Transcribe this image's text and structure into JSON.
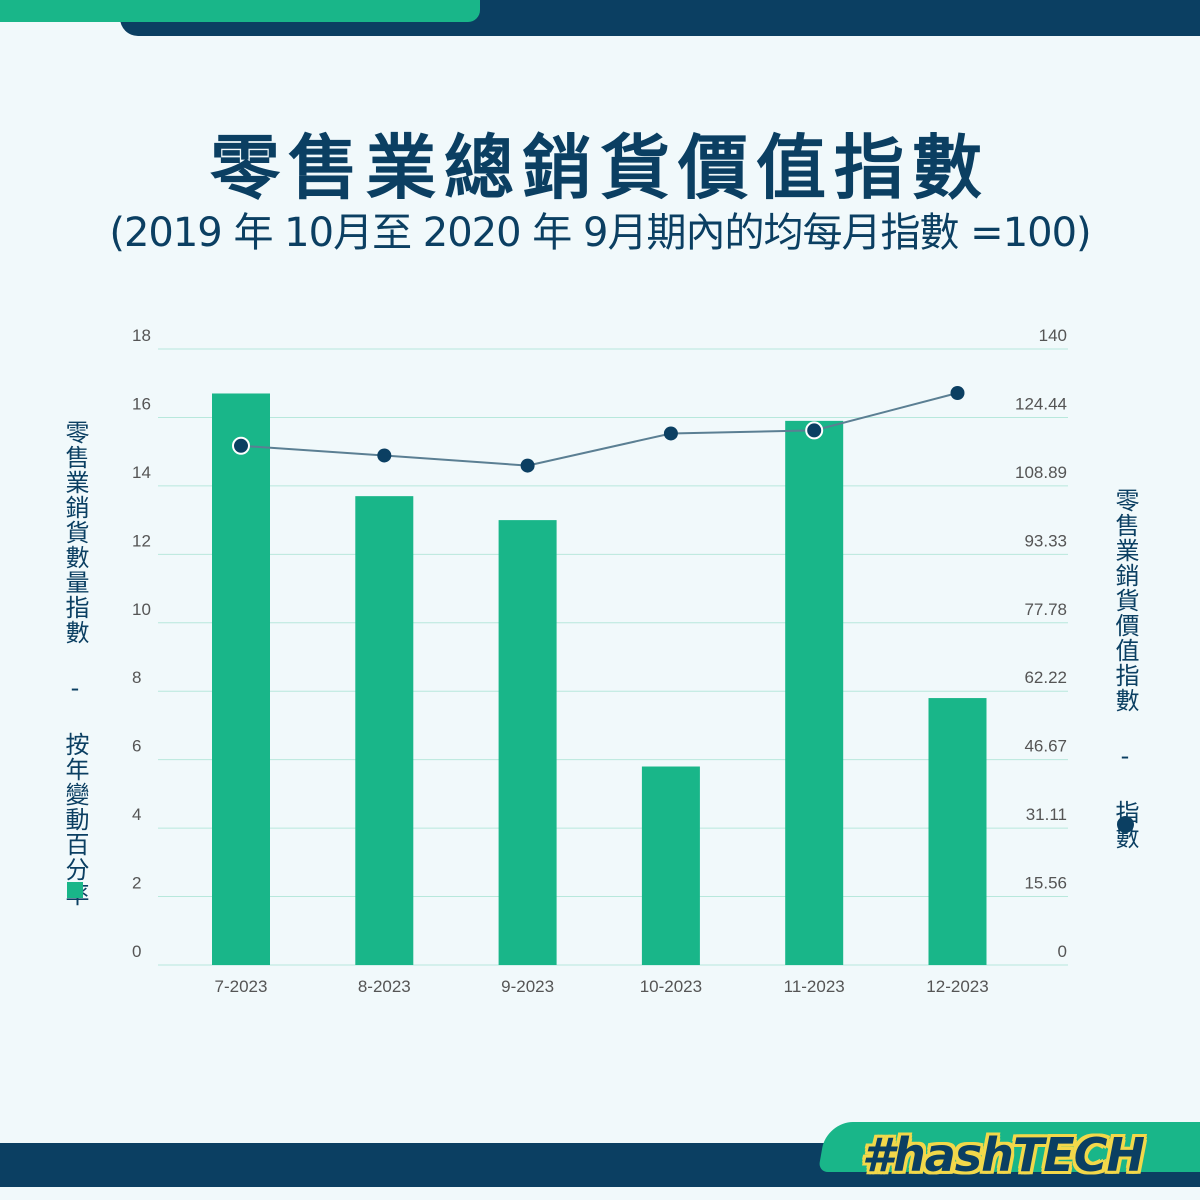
{
  "title": "零售業總銷貨價值指數",
  "subtitle": "(2019 年 10月至 2020 年 9月期內的均每月指數 =100)",
  "logo_text": "#hashTECH",
  "colors": {
    "bar": "#19b689",
    "line": "#5b7f93",
    "marker": "#0b3f62",
    "brand_navy": "#0b3f62",
    "brand_green": "#19b689"
  },
  "chart_data": {
    "type": "bar",
    "categories": [
      "7-2023",
      "8-2023",
      "9-2023",
      "10-2023",
      "11-2023",
      "12-2023"
    ],
    "series": [
      {
        "name": "零售業銷貨數量指數 - 按年變動百分率",
        "type": "bar",
        "axis": "left",
        "values": [
          16.7,
          13.7,
          13.0,
          5.8,
          15.9,
          7.8
        ]
      },
      {
        "name": "零售業銷貨價值指數 - 指數",
        "type": "line",
        "axis": "right",
        "values": [
          118.0,
          115.8,
          113.5,
          120.8,
          121.5,
          130.0
        ]
      }
    ],
    "y_left": {
      "label": "零售業銷貨數量指數 - 按年變動百分率",
      "ylim": [
        0,
        18
      ],
      "ticks": [
        "0",
        "2",
        "4",
        "6",
        "8",
        "10",
        "12",
        "14",
        "16",
        "18"
      ]
    },
    "y_right": {
      "label": "零售業銷貨價值指數 - 指數",
      "ylim": [
        0,
        140
      ],
      "ticks": [
        "0",
        "15.56",
        "31.11",
        "46.67",
        "62.22",
        "77.78",
        "93.33",
        "108.89",
        "124.44",
        "140"
      ]
    },
    "grid": true
  }
}
